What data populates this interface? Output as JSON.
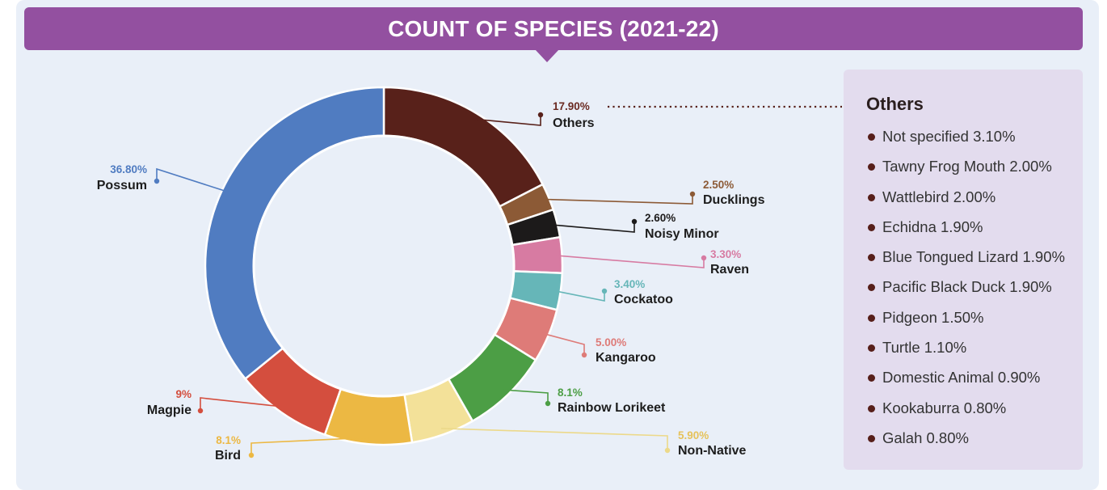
{
  "title": "COUNT OF SPECIES (2021-22)",
  "colors": {
    "banner": "#9350a0",
    "panel": "#e9eff8",
    "others_box": "#e3dcee"
  },
  "chart_data": {
    "type": "pie",
    "style": "donut",
    "title": "COUNT OF SPECIES (2021-22)",
    "slices": [
      {
        "label": "Others",
        "pct_label": "17.90%",
        "value": 17.9,
        "color": "#58211a"
      },
      {
        "label": "Ducklings",
        "pct_label": "2.50%",
        "value": 2.5,
        "color": "#8c5a36"
      },
      {
        "label": "Noisy Minor",
        "pct_label": "2.60%",
        "value": 2.6,
        "color": "#1c1a1a"
      },
      {
        "label": "Raven",
        "pct_label": "3.30%",
        "value": 3.3,
        "color": "#d77ba2"
      },
      {
        "label": "Cockatoo",
        "pct_label": "3.40%",
        "value": 3.4,
        "color": "#66b6b8"
      },
      {
        "label": "Kangaroo",
        "pct_label": "5.00%",
        "value": 5.0,
        "color": "#de7b78"
      },
      {
        "label": "Rainbow Lorikeet",
        "pct_label": "8.1%",
        "value": 8.1,
        "color": "#4c9e45"
      },
      {
        "label": "Non-Native",
        "pct_label": "5.90%",
        "value": 5.9,
        "color": "#f3e199"
      },
      {
        "label": "Bird",
        "pct_label": "8.1%",
        "value": 8.1,
        "color": "#ecb843"
      },
      {
        "label": "Magpie",
        "pct_label": "9%",
        "value": 9.0,
        "color": "#d44e3e"
      },
      {
        "label": "Possum",
        "pct_label": "36.80%",
        "value": 36.8,
        "color": "#507cc1"
      }
    ],
    "others_breakdown": {
      "title": "Others",
      "items": [
        "Not specified 3.10%",
        "Tawny Frog Mouth 2.00%",
        "Wattlebird 2.00%",
        "Echidna 1.90%",
        "Blue Tongued Lizard 1.90%",
        "Pacific Black Duck 1.90%",
        "Pidgeon 1.50%",
        "Turtle 1.10%",
        "Domestic Animal 0.90%",
        "Kookaburra 0.80%",
        "Galah 0.80%"
      ]
    }
  }
}
